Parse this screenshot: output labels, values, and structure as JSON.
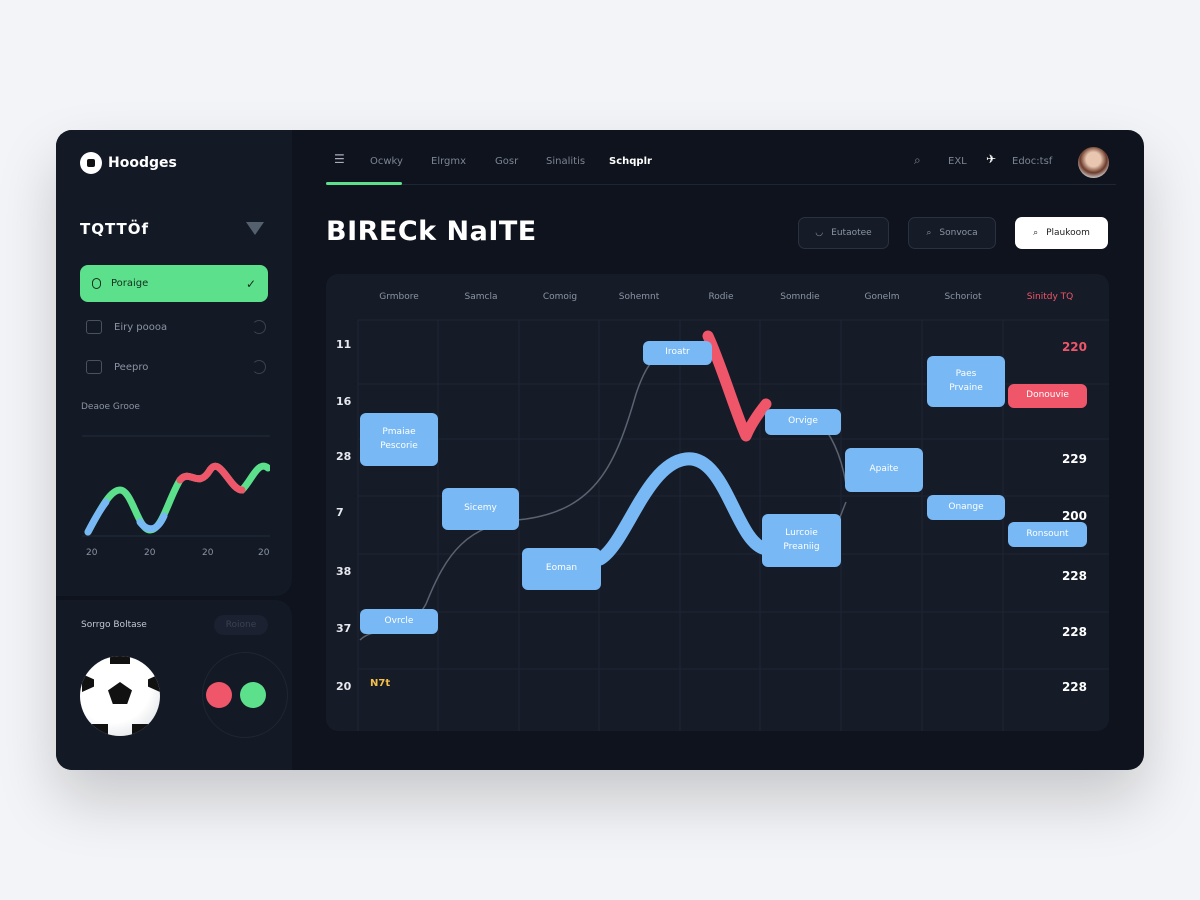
{
  "brand": {
    "name": "Hoodges"
  },
  "sidebar": {
    "section_title": "TQTTÖf",
    "active_item": "Poraige",
    "items": [
      {
        "label": "Eiry poooa"
      },
      {
        "label": "Peepro"
      }
    ],
    "chart_title": "Deaoe Grooe",
    "chart_ticks": [
      "20",
      "20",
      "20",
      "20"
    ],
    "bottom_title": "Sorrgo Boltase",
    "bottom_button": "Roione",
    "indicator_colors": [
      "#f0566a",
      "#5ce08c"
    ]
  },
  "nav": {
    "items": [
      "Ocwky",
      "Elrgmx",
      "Gosr",
      "Sinalitis",
      "Schqplr"
    ],
    "active_index": 0,
    "right": {
      "search": "",
      "ext": "EXL",
      "menu": "Edoc:tsf"
    }
  },
  "page": {
    "title": "BIRECk NaITE",
    "buttons": [
      {
        "label": "Eutaotee",
        "icon": "shield-icon"
      },
      {
        "label": "Sonvoca",
        "icon": "search-icon"
      },
      {
        "label": "Plaukoom",
        "icon": "search-icon"
      }
    ]
  },
  "grid": {
    "columns": [
      "Grmbore",
      "Samcla",
      "Comoig",
      "Sohemnt",
      "Rodie",
      "Somndie",
      "Gonelm",
      "Schoriot",
      "Sinitdy TQ"
    ],
    "row_labels": [
      "11",
      "16",
      "28",
      "7",
      "38",
      "37",
      "20"
    ],
    "right_values": [
      "220",
      "229",
      "200",
      "228",
      "228",
      "228"
    ],
    "footer_tag": "N7t",
    "boxes": [
      {
        "lines": [
          "Pmaiae",
          "Pescorie"
        ]
      },
      {
        "lines": [
          "Sicemy"
        ]
      },
      {
        "lines": [
          "Eoman"
        ]
      },
      {
        "lines": [
          "Ovrcle"
        ]
      },
      {
        "lines": [
          "Iroatr"
        ]
      },
      {
        "lines": [
          "Orvige"
        ]
      },
      {
        "lines": [
          "Apaite"
        ]
      },
      {
        "lines": [
          "Lurcoie",
          "Preaniig"
        ]
      },
      {
        "lines": [
          "Paes",
          "Prvaine"
        ]
      },
      {
        "lines": [
          "Donouvie"
        ]
      },
      {
        "lines": [
          "Onange"
        ]
      },
      {
        "lines": [
          "Ronsount"
        ]
      }
    ]
  },
  "colors": {
    "accent": "#5ce08c",
    "alert": "#f0566a",
    "node": "#78b8f4",
    "background": "#0e131d"
  }
}
